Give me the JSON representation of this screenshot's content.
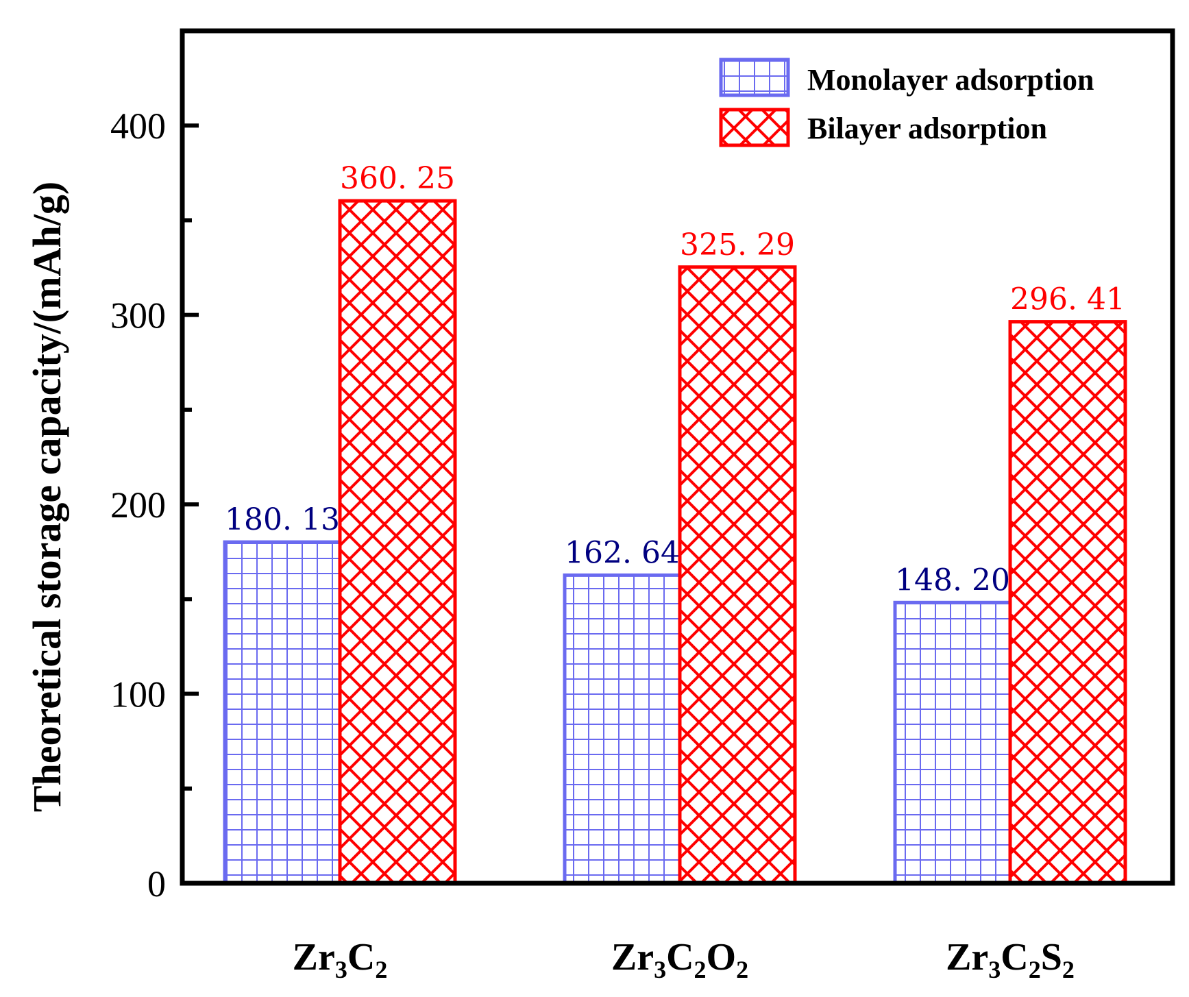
{
  "chart_data": {
    "type": "bar",
    "ylabel": "Theoretical storage capacity/(mAh/g)",
    "xlabel": "",
    "ylim": [
      0,
      450
    ],
    "yticks": [
      0,
      100,
      200,
      300,
      400
    ],
    "yticks_minor": [
      50,
      150,
      250,
      350
    ],
    "categories": [
      {
        "base": "Zr",
        "sub1": "3",
        "mid": "C",
        "sub2": "2",
        "tail": "",
        "sub3": ""
      },
      {
        "base": "Zr",
        "sub1": "3",
        "mid": "C",
        "sub2": "2",
        "tail": "O",
        "sub3": "2"
      },
      {
        "base": "Zr",
        "sub1": "3",
        "mid": "C",
        "sub2": "2",
        "tail": "S",
        "sub3": "2"
      }
    ],
    "series": [
      {
        "name": "Monolayer adsorption",
        "pattern": "grid",
        "color": "#6a6af0",
        "label_color": "#000080",
        "values": [
          180.13,
          162.64,
          148.2
        ],
        "labels": [
          "180. 13",
          "162. 64",
          "148. 20"
        ]
      },
      {
        "name": "Bilayer adsorption",
        "pattern": "crosshatch",
        "color": "#ff0000",
        "label_color": "#ff0000",
        "values": [
          360.25,
          325.29,
          296.41
        ],
        "labels": [
          "360. 25",
          "325. 29",
          "296. 41"
        ]
      }
    ],
    "legend_position": "top-right",
    "grid": false
  }
}
